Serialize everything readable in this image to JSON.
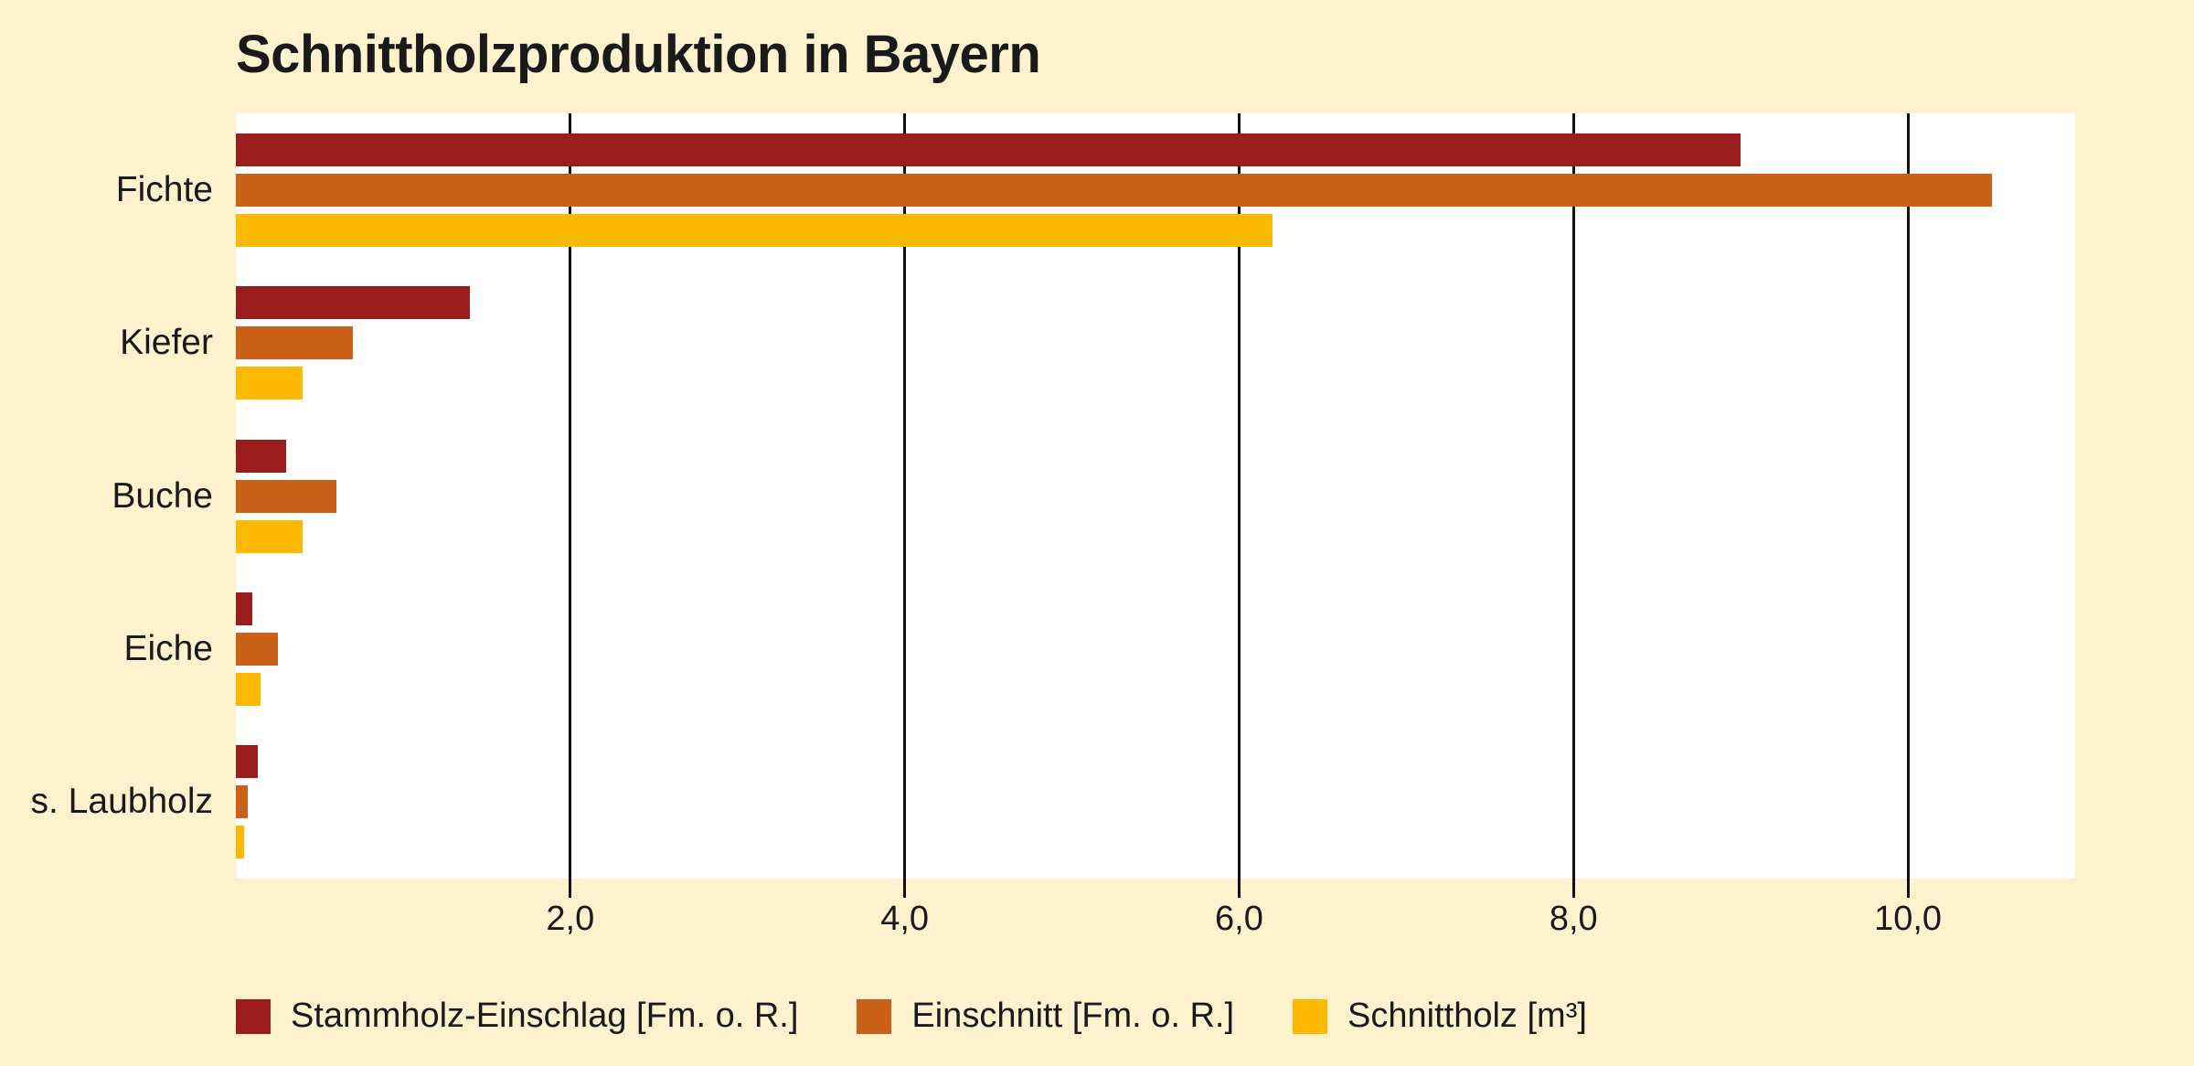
{
  "page": {
    "background_color": "#FDF1CE",
    "plot_background_color": "#FFFFFF",
    "text_color": "#1A1A1A",
    "grid_color": "#111111"
  },
  "chart_data": {
    "type": "bar",
    "orientation": "horizontal",
    "title": "Schnittholzproduktion in Bayern",
    "categories": [
      "Fichte",
      "Kiefer",
      "Buche",
      "Eiche",
      "s. Laubholz"
    ],
    "series": [
      {
        "name": "Stammholz-Einschlag [Fm. o. R.]",
        "color": "#9B1C1C",
        "values": [
          9.0,
          1.4,
          0.3,
          0.1,
          0.13
        ]
      },
      {
        "name": "Einschnitt [Fm. o. R.]",
        "color": "#CB6118",
        "values": [
          10.5,
          0.7,
          0.6,
          0.25,
          0.07
        ]
      },
      {
        "name": "Schnittholz [m³]",
        "color": "#FBBA00",
        "values": [
          6.2,
          0.4,
          0.4,
          0.15,
          0.05
        ]
      }
    ],
    "x_ticks": [
      2,
      4,
      6,
      8,
      10
    ],
    "x_tick_labels": [
      "2,0",
      "4,0",
      "6,0",
      "8,0",
      "10,0"
    ],
    "xlim": [
      0,
      11
    ],
    "grid": "vertical",
    "gridlines_behind_bars": true,
    "legend_position": "bottom",
    "y_axis_line": false
  }
}
